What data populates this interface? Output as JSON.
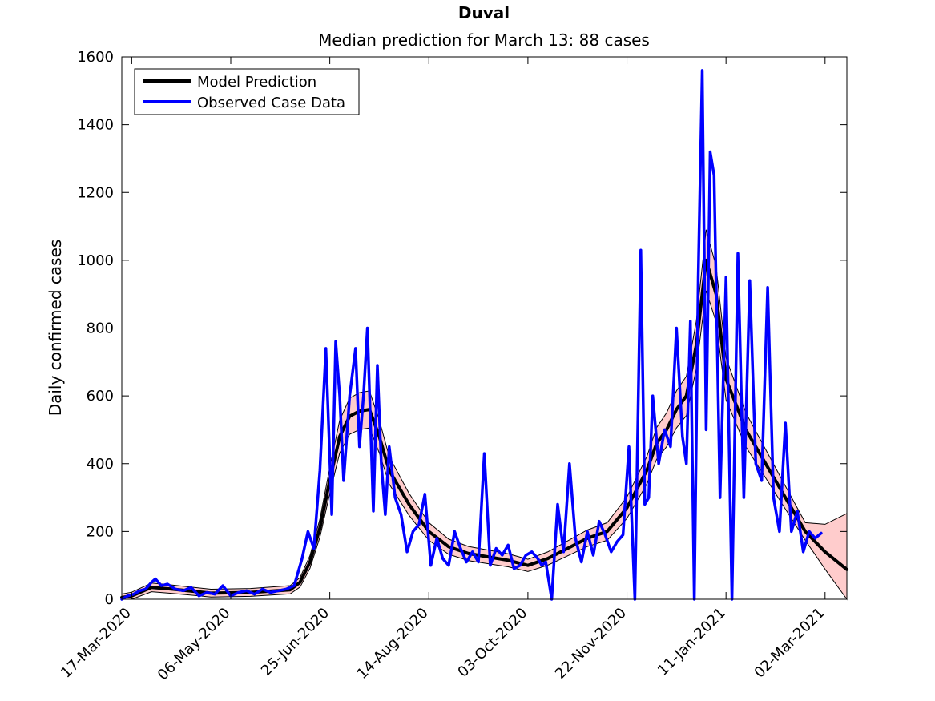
{
  "chart_data": {
    "type": "line",
    "title": "Duval",
    "subtitle": "Median prediction for March 13: 88 cases",
    "xlabel": "",
    "ylabel": "Daily confirmed cases",
    "xlim": [
      "2020-03-12",
      "2021-03-13"
    ],
    "ylim": [
      0,
      1600
    ],
    "x_ticks": [
      "17-Mar-2020",
      "06-May-2020",
      "25-Jun-2020",
      "14-Aug-2020",
      "03-Oct-2020",
      "22-Nov-2020",
      "11-Jan-2021",
      "02-Mar-2021"
    ],
    "y_ticks": [
      0,
      200,
      400,
      600,
      800,
      1000,
      1200,
      1400,
      1600
    ],
    "grid": false,
    "legend_position": "top-left",
    "band_color": "#ffcccc",
    "series": [
      {
        "name": "Model Prediction",
        "color": "#000000",
        "x": [
          "2020-03-12",
          "2020-03-17",
          "2020-03-27",
          "2020-04-06",
          "2020-04-26",
          "2020-05-16",
          "2020-06-05",
          "2020-06-10",
          "2020-06-15",
          "2020-06-20",
          "2020-06-25",
          "2020-06-30",
          "2020-07-05",
          "2020-07-10",
          "2020-07-15",
          "2020-07-20",
          "2020-07-25",
          "2020-08-04",
          "2020-08-14",
          "2020-08-24",
          "2020-09-03",
          "2020-09-13",
          "2020-09-23",
          "2020-10-03",
          "2020-10-13",
          "2020-10-23",
          "2020-11-02",
          "2020-11-12",
          "2020-11-22",
          "2020-12-02",
          "2020-12-07",
          "2020-12-12",
          "2020-12-17",
          "2020-12-22",
          "2020-12-27",
          "2021-01-01",
          "2021-01-06",
          "2021-01-11",
          "2021-01-21",
          "2021-01-31",
          "2021-02-10",
          "2021-02-20",
          "2021-03-02",
          "2021-03-13"
        ],
        "values": [
          5,
          10,
          35,
          30,
          18,
          20,
          28,
          50,
          110,
          210,
          350,
          480,
          540,
          555,
          560,
          480,
          380,
          280,
          200,
          155,
          135,
          125,
          115,
          100,
          120,
          150,
          180,
          200,
          270,
          380,
          460,
          500,
          560,
          600,
          750,
          1000,
          900,
          650,
          500,
          400,
          300,
          200,
          140,
          88
        ]
      },
      {
        "name": "Observed Case Data",
        "color": "#0000ff",
        "x": [
          "2020-03-12",
          "2020-03-15",
          "2020-03-18",
          "2020-03-21",
          "2020-03-24",
          "2020-03-27",
          "2020-03-29",
          "2020-04-01",
          "2020-04-04",
          "2020-04-08",
          "2020-04-12",
          "2020-04-16",
          "2020-04-20",
          "2020-04-24",
          "2020-04-28",
          "2020-05-02",
          "2020-05-06",
          "2020-05-10",
          "2020-05-14",
          "2020-05-18",
          "2020-05-22",
          "2020-05-26",
          "2020-05-30",
          "2020-06-03",
          "2020-06-07",
          "2020-06-11",
          "2020-06-14",
          "2020-06-17",
          "2020-06-20",
          "2020-06-23",
          "2020-06-26",
          "2020-06-28",
          "2020-06-30",
          "2020-07-02",
          "2020-07-05",
          "2020-07-08",
          "2020-07-10",
          "2020-07-12",
          "2020-07-14",
          "2020-07-17",
          "2020-07-19",
          "2020-07-21",
          "2020-07-23",
          "2020-07-25",
          "2020-07-28",
          "2020-07-31",
          "2020-08-03",
          "2020-08-06",
          "2020-08-09",
          "2020-08-12",
          "2020-08-15",
          "2020-08-18",
          "2020-08-21",
          "2020-08-24",
          "2020-08-27",
          "2020-08-30",
          "2020-09-02",
          "2020-09-05",
          "2020-09-08",
          "2020-09-11",
          "2020-09-14",
          "2020-09-17",
          "2020-09-20",
          "2020-09-23",
          "2020-09-26",
          "2020-09-29",
          "2020-10-02",
          "2020-10-05",
          "2020-10-08",
          "2020-10-10",
          "2020-10-12",
          "2020-10-15",
          "2020-10-18",
          "2020-10-21",
          "2020-10-24",
          "2020-10-27",
          "2020-10-30",
          "2020-11-02",
          "2020-11-05",
          "2020-11-08",
          "2020-11-11",
          "2020-11-14",
          "2020-11-17",
          "2020-11-20",
          "2020-11-23",
          "2020-11-26",
          "2020-11-29",
          "2020-12-01",
          "2020-12-03",
          "2020-12-05",
          "2020-12-08",
          "2020-12-11",
          "2020-12-14",
          "2020-12-17",
          "2020-12-20",
          "2020-12-22",
          "2020-12-24",
          "2020-12-26",
          "2020-12-28",
          "2020-12-30",
          "2021-01-01",
          "2021-01-03",
          "2021-01-05",
          "2021-01-08",
          "2021-01-11",
          "2021-01-14",
          "2021-01-17",
          "2021-01-20",
          "2021-01-23",
          "2021-01-26",
          "2021-01-29",
          "2021-02-01",
          "2021-02-04",
          "2021-02-07",
          "2021-02-10",
          "2021-02-13",
          "2021-02-16",
          "2021-02-19",
          "2021-02-22",
          "2021-02-25",
          "2021-02-28"
        ],
        "values": [
          0,
          10,
          15,
          25,
          30,
          50,
          60,
          40,
          45,
          30,
          25,
          35,
          10,
          20,
          15,
          40,
          10,
          20,
          25,
          15,
          30,
          20,
          25,
          30,
          40,
          120,
          200,
          150,
          380,
          740,
          250,
          760,
          600,
          350,
          600,
          740,
          450,
          600,
          800,
          260,
          690,
          400,
          250,
          450,
          300,
          250,
          140,
          200,
          220,
          310,
          100,
          180,
          120,
          100,
          200,
          150,
          110,
          140,
          110,
          430,
          100,
          150,
          130,
          160,
          90,
          100,
          130,
          140,
          120,
          100,
          110,
          0,
          280,
          140,
          400,
          180,
          110,
          200,
          130,
          230,
          190,
          140,
          170,
          190,
          450,
          0,
          1030,
          280,
          300,
          600,
          400,
          500,
          450,
          800,
          480,
          400,
          820,
          0,
          950,
          1560,
          500,
          1320,
          1250,
          300,
          950,
          0,
          1020,
          300,
          940,
          400,
          350,
          920,
          300,
          200,
          520,
          200,
          260,
          140,
          200,
          180,
          195
        ]
      }
    ]
  }
}
